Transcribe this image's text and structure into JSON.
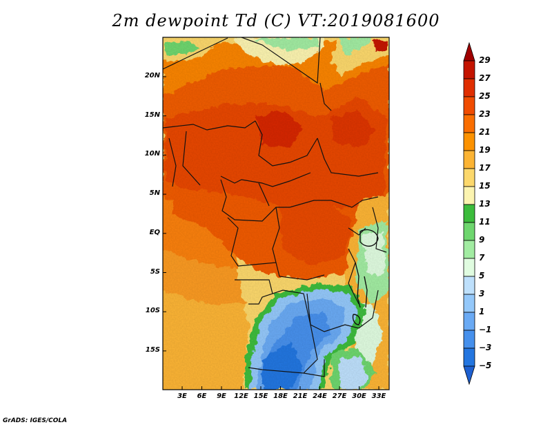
{
  "title": "2m dewpoint Td (C) VT:2019081600",
  "credit": "GrADS: IGES/COLA",
  "map": {
    "lat_ticks": [
      "20N",
      "15N",
      "10N",
      "5N",
      "EQ",
      "5S",
      "10S",
      "15S"
    ],
    "lon_ticks": [
      "3E",
      "6E",
      "9E",
      "12E",
      "15E",
      "18E",
      "21E",
      "24E",
      "27E",
      "30E",
      "33E"
    ]
  },
  "colorbar": {
    "labels": [
      "29",
      "27",
      "25",
      "23",
      "21",
      "19",
      "17",
      "15",
      "13",
      "11",
      "9",
      "7",
      "5",
      "3",
      "1",
      "−1",
      "−3",
      "−5"
    ],
    "colors": [
      "#a00000",
      "#c41400",
      "#e02e00",
      "#f04c00",
      "#fa6e00",
      "#fc9200",
      "#fcb434",
      "#fcd86c",
      "#fcf4b0",
      "#3cbc3c",
      "#6ed66e",
      "#a2eca2",
      "#e0fce0",
      "#bee0fc",
      "#94c8fa",
      "#6aaaf4",
      "#4690ec",
      "#2476e0",
      "#1e60d0"
    ]
  }
}
